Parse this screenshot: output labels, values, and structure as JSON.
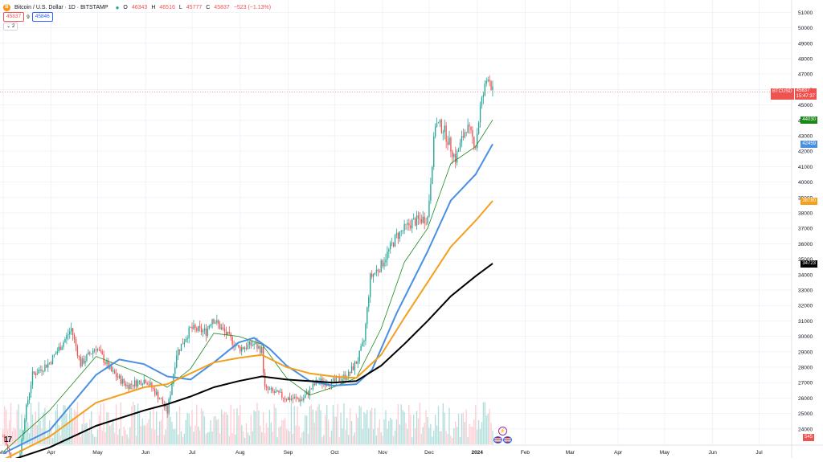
{
  "legend": {
    "logo": "B",
    "title": "Bitcoin / U.S. Dollar · 1D · BITSTAMP",
    "open_label": "O",
    "open": "46343",
    "high_label": "H",
    "high": "46516",
    "low_label": "L",
    "low": "45777",
    "close_label": "C",
    "close": "45837",
    "change": "−523 (−1.13%)"
  },
  "trade": {
    "sell": "45837",
    "spread": "9",
    "buy": "45846"
  },
  "indicator_toggle": {
    "count": "2"
  },
  "last_price": {
    "symbol": "BTCUSD",
    "price": "45837",
    "countdown": "15:47:37"
  },
  "ma_labels": [
    {
      "value": "44030",
      "color": "#1b8a1b",
      "price": 44030
    },
    {
      "value": "42459",
      "color": "#4a90e2",
      "price": 42459
    },
    {
      "value": "38780",
      "color": "#f2a01d",
      "price": 38780
    },
    {
      "value": "34723",
      "color": "#000000",
      "price": 34723
    }
  ],
  "volume_label": "545",
  "tv_logo": "17",
  "events": {
    "bolt": "⚡"
  },
  "colors": {
    "up": "#26a69a",
    "down": "#ef5350",
    "ma_fast": "#1b8a1b",
    "ma_blue": "#4a90e2",
    "ma_orange": "#f2a01d",
    "ma_black": "#000000",
    "vol_up": "#b2dfdb",
    "vol_down": "#ffcdd2",
    "grid": "#f0f3fa",
    "axis_text": "#131722"
  },
  "chart_data": {
    "type": "candlestick",
    "y_ticks": [
      24000,
      25000,
      26000,
      27000,
      28000,
      29000,
      30000,
      31000,
      32000,
      33000,
      34000,
      35000,
      36000,
      37000,
      38000,
      39000,
      40000,
      41000,
      42000,
      43000,
      44000,
      45000,
      46000,
      47000,
      48000,
      49000,
      50000,
      51000
    ],
    "x_labels": [
      "Mar",
      "Apr",
      "May",
      "Jun",
      "Jul",
      "Aug",
      "Sep",
      "Oct",
      "Nov",
      "Dec",
      "2024",
      "Feb",
      "Mar",
      "Apr",
      "May",
      "Jun",
      "Jul"
    ],
    "x_months": [
      "2023-03",
      "2023-04",
      "2023-05",
      "2023-06",
      "2023-07",
      "2023-08",
      "2023-09",
      "2023-10",
      "2023-11",
      "2023-12",
      "2024-01",
      "2024-02",
      "2024-03",
      "2024-04",
      "2024-05",
      "2024-06",
      "2024-07"
    ],
    "ylim": [
      23000,
      51800
    ],
    "price_trend": [
      [
        "2023-03-01",
        23500
      ],
      [
        "2023-03-10",
        21000
      ],
      [
        "2023-03-15",
        24800
      ],
      [
        "2023-03-20",
        27500
      ],
      [
        "2023-03-31",
        28300
      ],
      [
        "2023-04-10",
        29800
      ],
      [
        "2023-04-14",
        30500
      ],
      [
        "2023-04-20",
        28200
      ],
      [
        "2023-04-30",
        29300
      ],
      [
        "2023-05-10",
        27700
      ],
      [
        "2023-05-20",
        26800
      ],
      [
        "2023-06-01",
        27200
      ],
      [
        "2023-06-10",
        26000
      ],
      [
        "2023-06-15",
        25100
      ],
      [
        "2023-06-21",
        28900
      ],
      [
        "2023-06-30",
        30500
      ],
      [
        "2023-07-10",
        30300
      ],
      [
        "2023-07-14",
        31200
      ],
      [
        "2023-07-31",
        29200
      ],
      [
        "2023-08-10",
        29500
      ],
      [
        "2023-08-15",
        29100
      ],
      [
        "2023-08-17",
        26600
      ],
      [
        "2023-08-31",
        26000
      ],
      [
        "2023-09-10",
        25900
      ],
      [
        "2023-09-20",
        27100
      ],
      [
        "2023-09-30",
        27000
      ],
      [
        "2023-10-10",
        27500
      ],
      [
        "2023-10-16",
        28500
      ],
      [
        "2023-10-20",
        29700
      ],
      [
        "2023-10-24",
        33800
      ],
      [
        "2023-10-31",
        34600
      ],
      [
        "2023-11-10",
        36500
      ],
      [
        "2023-11-20",
        37400
      ],
      [
        "2023-11-30",
        37700
      ],
      [
        "2023-12-05",
        43800
      ],
      [
        "2023-12-10",
        43500
      ],
      [
        "2023-12-18",
        41500
      ],
      [
        "2023-12-25",
        43600
      ],
      [
        "2023-12-31",
        42400
      ],
      [
        "2024-01-03",
        44800
      ],
      [
        "2024-01-08",
        47000
      ],
      [
        "2024-01-10",
        46300
      ],
      [
        "2024-01-11",
        45837
      ]
    ],
    "ma_series": [
      {
        "name": "MA fast",
        "color": "#1b8a1b",
        "points": [
          [
            "2023-03-01",
            22500
          ],
          [
            "2023-03-31",
            25200
          ],
          [
            "2023-04-30",
            28700
          ],
          [
            "2023-05-31",
            27500
          ],
          [
            "2023-06-15",
            26700
          ],
          [
            "2023-06-30",
            27900
          ],
          [
            "2023-07-15",
            30200
          ],
          [
            "2023-07-31",
            30000
          ],
          [
            "2023-08-15",
            29500
          ],
          [
            "2023-08-31",
            27300
          ],
          [
            "2023-09-15",
            26200
          ],
          [
            "2023-09-30",
            26700
          ],
          [
            "2023-10-15",
            27300
          ],
          [
            "2023-10-31",
            30500
          ],
          [
            "2023-11-15",
            34800
          ],
          [
            "2023-11-30",
            37000
          ],
          [
            "2023-12-15",
            41200
          ],
          [
            "2023-12-31",
            42300
          ],
          [
            "2024-01-11",
            44030
          ]
        ]
      },
      {
        "name": "MA blue",
        "color": "#4a90e2",
        "points": [
          [
            "2023-03-01",
            22400
          ],
          [
            "2023-03-31",
            23900
          ],
          [
            "2023-04-30",
            27500
          ],
          [
            "2023-05-15",
            28500
          ],
          [
            "2023-05-31",
            28200
          ],
          [
            "2023-06-15",
            27400
          ],
          [
            "2023-06-30",
            27200
          ],
          [
            "2023-07-15",
            28300
          ],
          [
            "2023-07-31",
            29600
          ],
          [
            "2023-08-10",
            29900
          ],
          [
            "2023-08-20",
            29200
          ],
          [
            "2023-08-31",
            28100
          ],
          [
            "2023-09-15",
            27100
          ],
          [
            "2023-09-30",
            26800
          ],
          [
            "2023-10-15",
            26900
          ],
          [
            "2023-10-25",
            27800
          ],
          [
            "2023-11-10",
            31500
          ],
          [
            "2023-11-30",
            35500
          ],
          [
            "2023-12-15",
            38800
          ],
          [
            "2023-12-31",
            40500
          ],
          [
            "2024-01-11",
            42459
          ]
        ]
      },
      {
        "name": "MA orange",
        "color": "#f2a01d",
        "points": [
          [
            "2023-03-01",
            22000
          ],
          [
            "2023-03-31",
            23500
          ],
          [
            "2023-04-30",
            25700
          ],
          [
            "2023-05-31",
            26700
          ],
          [
            "2023-06-15",
            26900
          ],
          [
            "2023-06-30",
            27600
          ],
          [
            "2023-07-15",
            28300
          ],
          [
            "2023-07-31",
            28600
          ],
          [
            "2023-08-15",
            28800
          ],
          [
            "2023-08-31",
            28000
          ],
          [
            "2023-09-15",
            27600
          ],
          [
            "2023-09-30",
            27400
          ],
          [
            "2023-10-15",
            27300
          ],
          [
            "2023-10-31",
            28800
          ],
          [
            "2023-11-15",
            31200
          ],
          [
            "2023-11-30",
            33500
          ],
          [
            "2023-12-15",
            35800
          ],
          [
            "2023-12-31",
            37500
          ],
          [
            "2024-01-11",
            38780
          ]
        ]
      },
      {
        "name": "MA black",
        "color": "#000000",
        "points": [
          [
            "2023-03-01",
            21800
          ],
          [
            "2023-03-31",
            22800
          ],
          [
            "2023-04-30",
            24200
          ],
          [
            "2023-05-31",
            25200
          ],
          [
            "2023-06-15",
            25600
          ],
          [
            "2023-06-30",
            26100
          ],
          [
            "2023-07-15",
            26700
          ],
          [
            "2023-07-31",
            27100
          ],
          [
            "2023-08-15",
            27400
          ],
          [
            "2023-08-31",
            27200
          ],
          [
            "2023-09-15",
            27100
          ],
          [
            "2023-09-30",
            27000
          ],
          [
            "2023-10-15",
            27100
          ],
          [
            "2023-10-31",
            28100
          ],
          [
            "2023-11-15",
            29500
          ],
          [
            "2023-11-30",
            31000
          ],
          [
            "2023-12-15",
            32600
          ],
          [
            "2023-12-31",
            33900
          ],
          [
            "2024-01-11",
            34723
          ]
        ]
      }
    ]
  }
}
